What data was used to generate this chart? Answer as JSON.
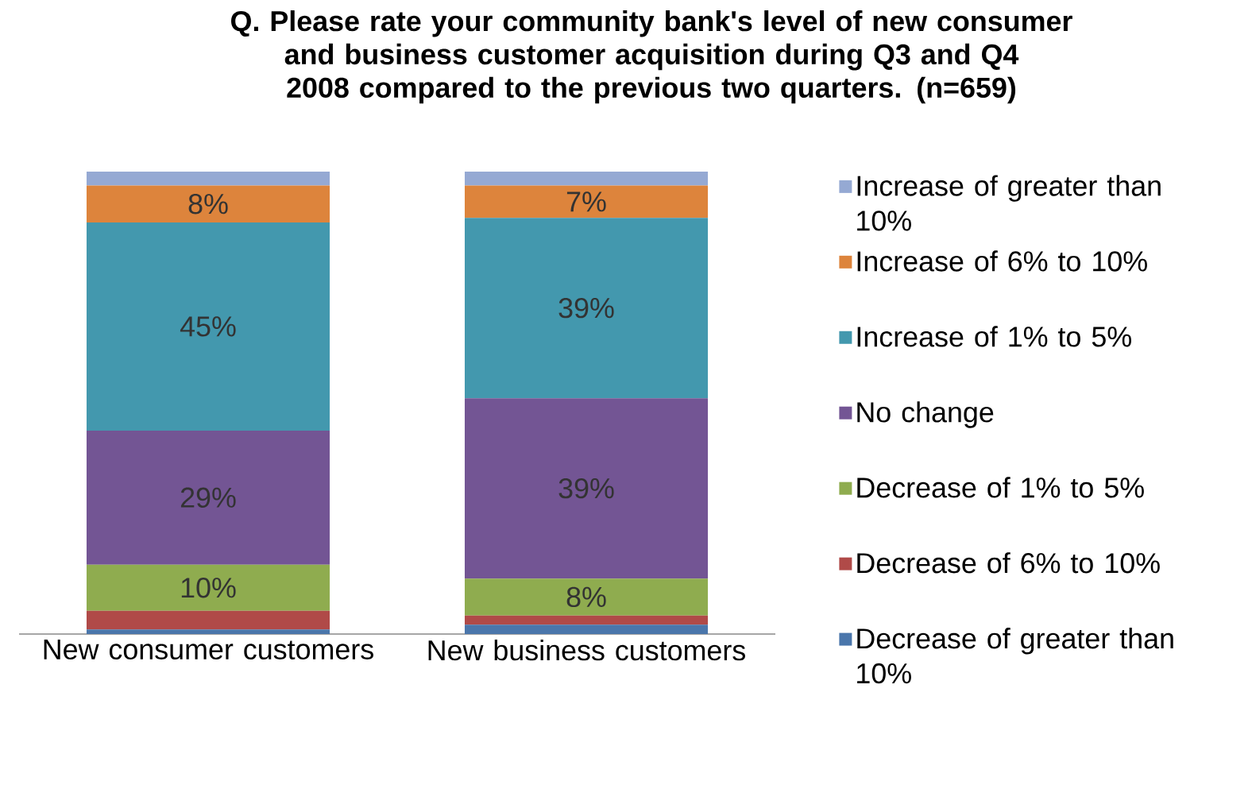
{
  "chart_data": {
    "type": "bar",
    "stacked": true,
    "title": "Q. Please rate your community bank's level of new consumer and business customer acquisition during Q3 and Q4 2008 compared to the previous two quarters. (n=659)",
    "categories": [
      "New consumer customers",
      "New business customers"
    ],
    "series": [
      {
        "name": "Decrease of greater than 10%",
        "color": "#4a76ab",
        "values": [
          1,
          2
        ],
        "value_labels": [
          null,
          null
        ]
      },
      {
        "name": "Decrease of 6% to 10%",
        "color": "#b04a48",
        "values": [
          4,
          2
        ],
        "value_labels": [
          null,
          null
        ]
      },
      {
        "name": "Decrease of 1% to 5%",
        "color": "#8fac4f",
        "values": [
          10,
          8
        ],
        "value_labels": [
          "10%",
          "8%"
        ]
      },
      {
        "name": "No change",
        "color": "#735594",
        "values": [
          29,
          39
        ],
        "value_labels": [
          "29%",
          "39%"
        ]
      },
      {
        "name": "Increase of 1% to 5%",
        "color": "#4398ae",
        "values": [
          45,
          39
        ],
        "value_labels": [
          "45%",
          "39%"
        ]
      },
      {
        "name": "Increase of 6% to 10%",
        "color": "#dd843c",
        "values": [
          8,
          7
        ],
        "value_labels": [
          "8%",
          "7%"
        ]
      },
      {
        "name": "Increase of greater than 10%",
        "color": "#95a9d3",
        "values": [
          3,
          3
        ],
        "value_labels": [
          null,
          null
        ]
      }
    ],
    "legend": "right"
  }
}
